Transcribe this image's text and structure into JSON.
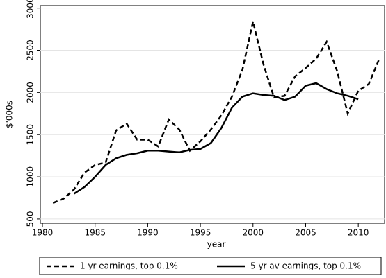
{
  "chart_data": {
    "type": "line",
    "xlabel": "year",
    "ylabel": "$'000s",
    "x": [
      1981,
      1982,
      1983,
      1984,
      1985,
      1986,
      1987,
      1988,
      1989,
      1990,
      1991,
      1992,
      1993,
      1994,
      1995,
      1996,
      1997,
      1998,
      1999,
      2000,
      2001,
      2002,
      2003,
      2004,
      2005,
      2006,
      2007,
      2008,
      2009,
      2010,
      2011,
      2012
    ],
    "series": [
      {
        "name": "1 yr earnings, top 0.1%",
        "color": "#000000",
        "dash": true,
        "values": [
          690,
          740,
          850,
          1050,
          1140,
          1170,
          1550,
          1630,
          1440,
          1440,
          1360,
          1680,
          1560,
          1310,
          1420,
          1560,
          1730,
          1950,
          2270,
          2840,
          2330,
          1940,
          1960,
          2190,
          2290,
          2400,
          2600,
          2250,
          1750,
          2020,
          2100,
          2400
        ]
      },
      {
        "name": "5 yr av earnings, top 0.1%",
        "color": "#000000",
        "dash": false,
        "values": [
          null,
          null,
          800,
          880,
          1000,
          1140,
          1220,
          1260,
          1280,
          1310,
          1310,
          1300,
          1290,
          1320,
          1330,
          1400,
          1580,
          1820,
          1950,
          1990,
          1970,
          1960,
          1910,
          1950,
          2080,
          2110,
          2040,
          1990,
          1960,
          1920,
          null,
          null
        ]
      }
    ],
    "xlim": [
      1979.8,
      2012.5
    ],
    "xticks": [
      1980,
      1985,
      1990,
      1995,
      2000,
      2005,
      2010
    ],
    "ylim": [
      450,
      3030
    ],
    "yticks": [
      500,
      1000,
      1500,
      2000,
      2500,
      3000
    ],
    "grid": true,
    "legend": "bottom"
  }
}
